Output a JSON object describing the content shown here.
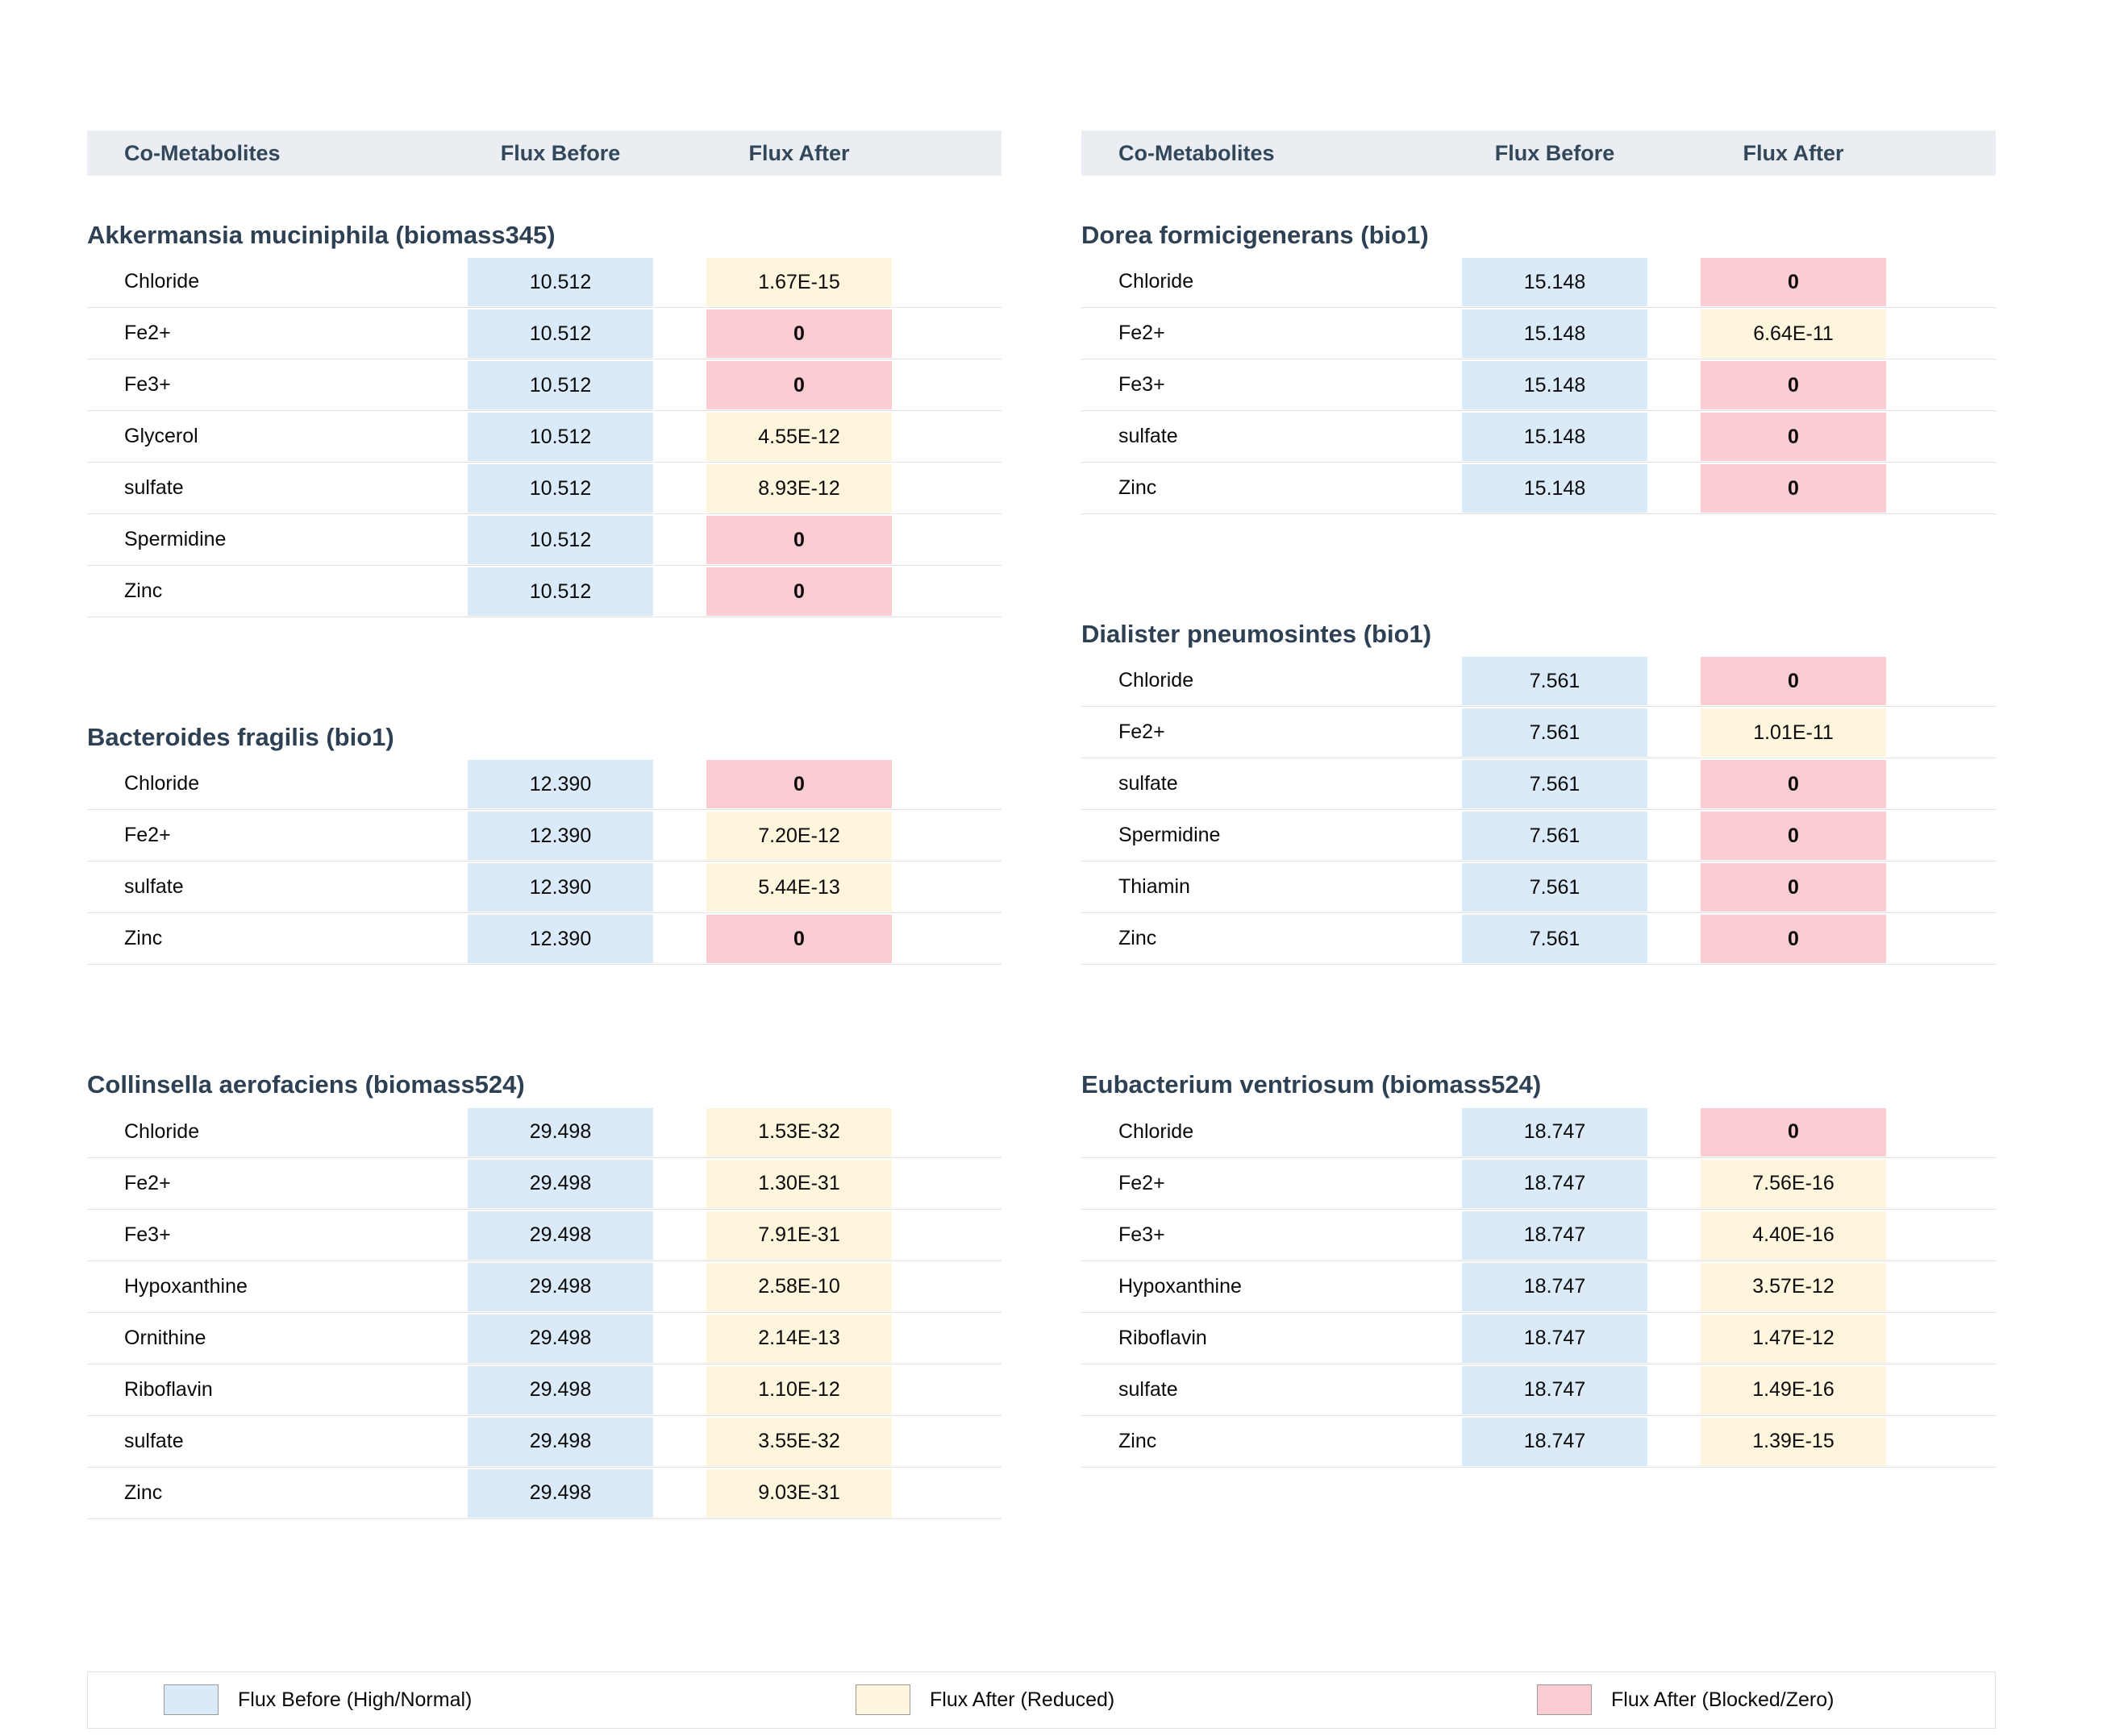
{
  "header": {
    "col_metabolites": "Co-Metabolites",
    "flux_before": "Flux Before",
    "flux_after": "Flux After"
  },
  "colors": {
    "flux_before": "#dbeaf8",
    "flux_after_reduced": "#fdf5dc",
    "flux_after_blocked": "#fcccd3",
    "header_bg": "#eaedf1",
    "title_text": "#2e4154"
  },
  "legend": [
    {
      "label": "Flux Before (High/Normal)",
      "state": "before"
    },
    {
      "label": "Flux After (Reduced)",
      "state": "reduced"
    },
    {
      "label": "Flux After (Blocked/Zero)",
      "state": "blocked"
    }
  ],
  "columns": [
    {
      "sections": [
        {
          "title": "Akkermansia muciniphila (biomass345)",
          "rows": [
            {
              "metabolite": "Chloride",
              "before": "10.512",
              "after": "1.67E-15",
              "after_state": "reduced"
            },
            {
              "metabolite": "Fe2+",
              "before": "10.512",
              "after": "0",
              "after_state": "blocked"
            },
            {
              "metabolite": "Fe3+",
              "before": "10.512",
              "after": "0",
              "after_state": "blocked"
            },
            {
              "metabolite": "Glycerol",
              "before": "10.512",
              "after": "4.55E-12",
              "after_state": "reduced"
            },
            {
              "metabolite": "sulfate",
              "before": "10.512",
              "after": "8.93E-12",
              "after_state": "reduced"
            },
            {
              "metabolite": "Spermidine",
              "before": "10.512",
              "after": "0",
              "after_state": "blocked"
            },
            {
              "metabolite": "Zinc",
              "before": "10.512",
              "after": "0",
              "after_state": "blocked"
            }
          ]
        },
        {
          "title": "Bacteroides fragilis (bio1)",
          "rows": [
            {
              "metabolite": "Chloride",
              "before": "12.390",
              "after": "0",
              "after_state": "blocked"
            },
            {
              "metabolite": "Fe2+",
              "before": "12.390",
              "after": "7.20E-12",
              "after_state": "reduced"
            },
            {
              "metabolite": "sulfate",
              "before": "12.390",
              "after": "5.44E-13",
              "after_state": "reduced"
            },
            {
              "metabolite": "Zinc",
              "before": "12.390",
              "after": "0",
              "after_state": "blocked"
            }
          ]
        },
        {
          "title": "Collinsella aerofaciens (biomass524)",
          "rows": [
            {
              "metabolite": "Chloride",
              "before": "29.498",
              "after": "1.53E-32",
              "after_state": "reduced"
            },
            {
              "metabolite": "Fe2+",
              "before": "29.498",
              "after": "1.30E-31",
              "after_state": "reduced"
            },
            {
              "metabolite": "Fe3+",
              "before": "29.498",
              "after": "7.91E-31",
              "after_state": "reduced"
            },
            {
              "metabolite": "Hypoxanthine",
              "before": "29.498",
              "after": "2.58E-10",
              "after_state": "reduced"
            },
            {
              "metabolite": "Ornithine",
              "before": "29.498",
              "after": "2.14E-13",
              "after_state": "reduced"
            },
            {
              "metabolite": "Riboflavin",
              "before": "29.498",
              "after": "1.10E-12",
              "after_state": "reduced"
            },
            {
              "metabolite": "sulfate",
              "before": "29.498",
              "after": "3.55E-32",
              "after_state": "reduced"
            },
            {
              "metabolite": "Zinc",
              "before": "29.498",
              "after": "9.03E-31",
              "after_state": "reduced"
            }
          ]
        }
      ]
    },
    {
      "sections": [
        {
          "title": "Dorea formicigenerans (bio1)",
          "rows": [
            {
              "metabolite": "Chloride",
              "before": "15.148",
              "after": "0",
              "after_state": "blocked"
            },
            {
              "metabolite": "Fe2+",
              "before": "15.148",
              "after": "6.64E-11",
              "after_state": "reduced"
            },
            {
              "metabolite": "Fe3+",
              "before": "15.148",
              "after": "0",
              "after_state": "blocked"
            },
            {
              "metabolite": "sulfate",
              "before": "15.148",
              "after": "0",
              "after_state": "blocked"
            },
            {
              "metabolite": "Zinc",
              "before": "15.148",
              "after": "0",
              "after_state": "blocked"
            }
          ]
        },
        {
          "title": "Dialister pneumosintes (bio1)",
          "rows": [
            {
              "metabolite": "Chloride",
              "before": "7.561",
              "after": "0",
              "after_state": "blocked"
            },
            {
              "metabolite": "Fe2+",
              "before": "7.561",
              "after": "1.01E-11",
              "after_state": "reduced"
            },
            {
              "metabolite": "sulfate",
              "before": "7.561",
              "after": "0",
              "after_state": "blocked"
            },
            {
              "metabolite": "Spermidine",
              "before": "7.561",
              "after": "0",
              "after_state": "blocked"
            },
            {
              "metabolite": "Thiamin",
              "before": "7.561",
              "after": "0",
              "after_state": "blocked"
            },
            {
              "metabolite": "Zinc",
              "before": "7.561",
              "after": "0",
              "after_state": "blocked"
            }
          ]
        },
        {
          "title": "Eubacterium ventriosum (biomass524)",
          "rows": [
            {
              "metabolite": "Chloride",
              "before": "18.747",
              "after": "0",
              "after_state": "blocked"
            },
            {
              "metabolite": "Fe2+",
              "before": "18.747",
              "after": "7.56E-16",
              "after_state": "reduced"
            },
            {
              "metabolite": "Fe3+",
              "before": "18.747",
              "after": "4.40E-16",
              "after_state": "reduced"
            },
            {
              "metabolite": "Hypoxanthine",
              "before": "18.747",
              "after": "3.57E-12",
              "after_state": "reduced"
            },
            {
              "metabolite": "Riboflavin",
              "before": "18.747",
              "after": "1.47E-12",
              "after_state": "reduced"
            },
            {
              "metabolite": "sulfate",
              "before": "18.747",
              "after": "1.49E-16",
              "after_state": "reduced"
            },
            {
              "metabolite": "Zinc",
              "before": "18.747",
              "after": "1.39E-15",
              "after_state": "reduced"
            }
          ]
        }
      ]
    }
  ],
  "chart_data": {
    "type": "table",
    "legend": [
      "Flux Before (High/Normal)",
      "Flux After (Reduced)",
      "Flux After (Blocked/Zero)"
    ],
    "legend_position": "bottom",
    "columns": [
      "Co-Metabolites",
      "Flux Before",
      "Flux After"
    ],
    "tables": [
      {
        "title": "Akkermansia muciniphila (biomass345)",
        "rows": [
          [
            "Chloride",
            10.512,
            1.67e-15
          ],
          [
            "Fe2+",
            10.512,
            0
          ],
          [
            "Fe3+",
            10.512,
            0
          ],
          [
            "Glycerol",
            10.512,
            4.55e-12
          ],
          [
            "sulfate",
            10.512,
            8.93e-12
          ],
          [
            "Spermidine",
            10.512,
            0
          ],
          [
            "Zinc",
            10.512,
            0
          ]
        ]
      },
      {
        "title": "Bacteroides fragilis (bio1)",
        "rows": [
          [
            "Chloride",
            12.39,
            0
          ],
          [
            "Fe2+",
            12.39,
            7.2e-12
          ],
          [
            "sulfate",
            12.39,
            5.44e-13
          ],
          [
            "Zinc",
            12.39,
            0
          ]
        ]
      },
      {
        "title": "Collinsella aerofaciens (biomass524)",
        "rows": [
          [
            "Chloride",
            29.498,
            1.53e-32
          ],
          [
            "Fe2+",
            29.498,
            1.3e-31
          ],
          [
            "Fe3+",
            29.498,
            7.91e-31
          ],
          [
            "Hypoxanthine",
            29.498,
            2.58e-10
          ],
          [
            "Ornithine",
            29.498,
            2.14e-13
          ],
          [
            "Riboflavin",
            29.498,
            1.1e-12
          ],
          [
            "sulfate",
            29.498,
            3.55e-32
          ],
          [
            "Zinc",
            29.498,
            9.03e-31
          ]
        ]
      },
      {
        "title": "Dorea formicigenerans (bio1)",
        "rows": [
          [
            "Chloride",
            15.148,
            0
          ],
          [
            "Fe2+",
            15.148,
            6.64e-11
          ],
          [
            "Fe3+",
            15.148,
            0
          ],
          [
            "sulfate",
            15.148,
            0
          ],
          [
            "Zinc",
            15.148,
            0
          ]
        ]
      },
      {
        "title": "Dialister pneumosintes (bio1)",
        "rows": [
          [
            "Chloride",
            7.561,
            0
          ],
          [
            "Fe2+",
            7.561,
            1.01e-11
          ],
          [
            "sulfate",
            7.561,
            0
          ],
          [
            "Spermidine",
            7.561,
            0
          ],
          [
            "Thiamin",
            7.561,
            0
          ],
          [
            "Zinc",
            7.561,
            0
          ]
        ]
      },
      {
        "title": "Eubacterium ventriosum (biomass524)",
        "rows": [
          [
            "Chloride",
            18.747,
            0
          ],
          [
            "Fe2+",
            18.747,
            7.56e-16
          ],
          [
            "Fe3+",
            18.747,
            4.4e-16
          ],
          [
            "Hypoxanthine",
            18.747,
            3.57e-12
          ],
          [
            "Riboflavin",
            18.747,
            1.47e-12
          ],
          [
            "sulfate",
            18.747,
            1.49e-16
          ],
          [
            "Zinc",
            18.747,
            1.39e-15
          ]
        ]
      }
    ]
  }
}
